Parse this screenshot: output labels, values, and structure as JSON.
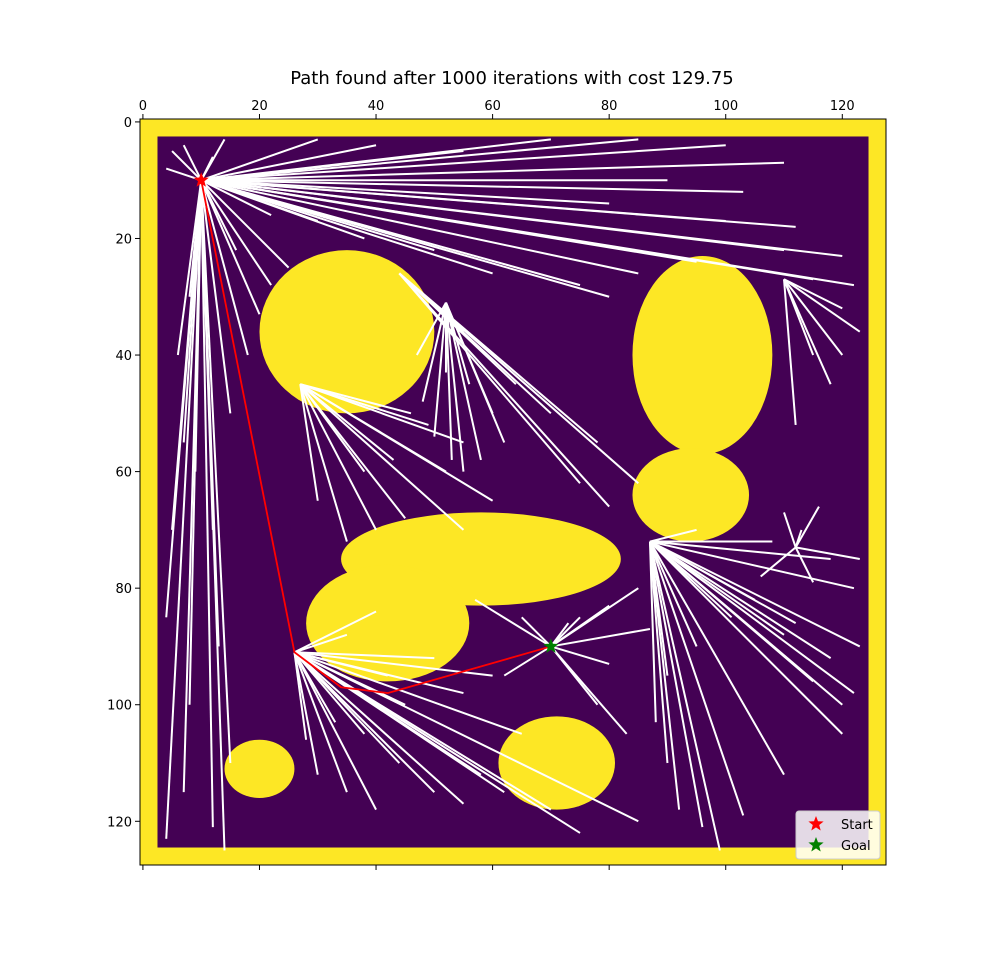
{
  "chart_data": {
    "type": "scatter",
    "title": "Path found after 1000 iterations with cost 129.75",
    "xlabel": "",
    "ylabel": "",
    "x_ticks": [
      "0",
      "20",
      "40",
      "60",
      "80",
      "100",
      "120"
    ],
    "y_ticks": [
      "0",
      "20",
      "40",
      "60",
      "80",
      "100",
      "120"
    ],
    "xlim": [
      -0.5,
      127.5
    ],
    "ylim": [
      127.5,
      -0.5
    ],
    "x_axis_position": "top",
    "grid": false,
    "legend_placement": "lower-right",
    "colors": {
      "free": "#440154",
      "obstacle": "#fde725",
      "tree": "#ffffff",
      "path": "#ff0000",
      "start_marker": "#ff0000",
      "goal_marker": "#008000"
    },
    "legend": [
      {
        "name": "Start",
        "color": "#ff0000",
        "marker": "star"
      },
      {
        "name": "Goal",
        "color": "#008000",
        "marker": "star"
      }
    ],
    "start": [
      10,
      10
    ],
    "goal": [
      70,
      90
    ],
    "path": [
      [
        10,
        10
      ],
      [
        26,
        91
      ],
      [
        34,
        97
      ],
      [
        42,
        98
      ],
      [
        70,
        90
      ]
    ],
    "obstacles": {
      "border_rows": [
        0,
        1,
        2,
        125,
        126,
        127
      ],
      "border_cols": [
        0,
        1,
        2,
        125,
        126,
        127
      ],
      "ellipses": [
        {
          "cx": 35,
          "cy": 36,
          "rx": 15,
          "ry": 14
        },
        {
          "cx": 96,
          "cy": 40,
          "rx": 12,
          "ry": 17
        },
        {
          "cx": 94,
          "cy": 64,
          "rx": 10,
          "ry": 8
        },
        {
          "cx": 58,
          "cy": 75,
          "rx": 24,
          "ry": 8
        },
        {
          "cx": 42,
          "cy": 86,
          "rx": 14,
          "ry": 10
        },
        {
          "cx": 71,
          "cy": 110,
          "rx": 10,
          "ry": 8
        },
        {
          "cx": 20,
          "cy": 111,
          "rx": 6,
          "ry": 5
        }
      ]
    },
    "tree_hubs": [
      {
        "x": 10,
        "y": 10,
        "fan": [
          [
            5,
            5
          ],
          [
            4,
            8
          ],
          [
            7,
            4
          ],
          [
            12,
            6
          ],
          [
            14,
            3
          ],
          [
            30,
            3
          ],
          [
            40,
            4
          ],
          [
            55,
            5
          ],
          [
            70,
            3
          ],
          [
            85,
            3
          ],
          [
            100,
            4
          ],
          [
            110,
            7
          ],
          [
            103,
            12
          ],
          [
            90,
            10
          ],
          [
            80,
            14
          ],
          [
            100,
            17
          ],
          [
            112,
            18
          ],
          [
            110,
            22
          ],
          [
            120,
            23
          ],
          [
            115,
            27
          ],
          [
            122,
            28
          ],
          [
            95,
            24
          ],
          [
            85,
            26
          ],
          [
            75,
            28
          ],
          [
            80,
            30
          ],
          [
            60,
            26
          ],
          [
            50,
            22
          ],
          [
            38,
            20
          ],
          [
            30,
            17
          ],
          [
            22,
            16
          ],
          [
            25,
            25
          ],
          [
            22,
            28
          ],
          [
            16,
            22
          ],
          [
            8,
            30
          ],
          [
            6,
            40
          ],
          [
            7,
            55
          ],
          [
            5,
            70
          ],
          [
            4,
            85
          ],
          [
            8,
            100
          ],
          [
            7,
            115
          ],
          [
            12,
            121
          ],
          [
            14,
            125
          ],
          [
            15,
            110
          ],
          [
            13,
            90
          ],
          [
            12,
            70
          ],
          [
            15,
            50
          ],
          [
            18,
            40
          ],
          [
            20,
            33
          ],
          [
            4,
            123
          ],
          [
            9,
            60
          ]
        ]
      },
      {
        "x": 27,
        "y": 45,
        "fan": [
          [
            49,
            52
          ],
          [
            55,
            55
          ],
          [
            52,
            60
          ],
          [
            60,
            65
          ],
          [
            55,
            70
          ],
          [
            45,
            68
          ],
          [
            40,
            70
          ],
          [
            35,
            72
          ],
          [
            30,
            65
          ],
          [
            38,
            60
          ],
          [
            43,
            58
          ],
          [
            46,
            50
          ]
        ]
      },
      {
        "x": 44,
        "y": 26,
        "fan": [
          [
            55,
            36
          ],
          [
            60,
            40
          ],
          [
            64,
            45
          ],
          [
            70,
            50
          ],
          [
            78,
            55
          ],
          [
            85,
            62
          ],
          [
            80,
            66
          ],
          [
            75,
            62
          ]
        ]
      },
      {
        "x": 52,
        "y": 31,
        "fan": [
          [
            60,
            50
          ],
          [
            62,
            55
          ],
          [
            58,
            58
          ],
          [
            55,
            60
          ],
          [
            53,
            58
          ],
          [
            50,
            54
          ],
          [
            48,
            48
          ],
          [
            47,
            40
          ],
          [
            52,
            43
          ],
          [
            56,
            45
          ]
        ]
      },
      {
        "x": 110,
        "y": 27,
        "fan": [
          [
            120,
            32
          ],
          [
            123,
            36
          ],
          [
            115,
            40
          ],
          [
            118,
            45
          ],
          [
            112,
            52
          ],
          [
            120,
            40
          ]
        ]
      },
      {
        "x": 87,
        "y": 72,
        "fan": [
          [
            95,
            70
          ],
          [
            108,
            72
          ],
          [
            118,
            75
          ],
          [
            122,
            80
          ],
          [
            112,
            86
          ],
          [
            118,
            92
          ],
          [
            122,
            98
          ],
          [
            120,
            105
          ],
          [
            110,
            112
          ],
          [
            103,
            119
          ],
          [
            99,
            125
          ],
          [
            96,
            121
          ],
          [
            92,
            118
          ],
          [
            90,
            110
          ],
          [
            88,
            103
          ],
          [
            90,
            95
          ],
          [
            95,
            90
          ],
          [
            101,
            85
          ],
          [
            105,
            82
          ],
          [
            110,
            88
          ],
          [
            115,
            96
          ],
          [
            123,
            90
          ],
          [
            120,
            100
          ]
        ]
      },
      {
        "x": 112,
        "y": 73,
        "fan": [
          [
            110,
            67
          ],
          [
            113,
            70
          ],
          [
            115,
            79
          ],
          [
            123,
            75
          ],
          [
            106,
            78
          ],
          [
            116,
            66
          ]
        ]
      },
      {
        "x": 26,
        "y": 91,
        "fan": [
          [
            35,
            88
          ],
          [
            40,
            84
          ],
          [
            50,
            92
          ],
          [
            55,
            98
          ],
          [
            45,
            100
          ],
          [
            38,
            105
          ],
          [
            44,
            110
          ],
          [
            50,
            115
          ],
          [
            40,
            118
          ],
          [
            35,
            115
          ],
          [
            30,
            112
          ],
          [
            28,
            106
          ],
          [
            33,
            103
          ],
          [
            42,
            95
          ],
          [
            60,
            95
          ],
          [
            65,
            105
          ],
          [
            58,
            112
          ],
          [
            62,
            115
          ],
          [
            70,
            118
          ],
          [
            85,
            120
          ],
          [
            75,
            122
          ],
          [
            55,
            117
          ]
        ]
      },
      {
        "x": 70,
        "y": 90,
        "fan": [
          [
            75,
            85
          ],
          [
            80,
            83
          ],
          [
            85,
            80
          ],
          [
            87,
            87
          ],
          [
            80,
            93
          ],
          [
            78,
            100
          ],
          [
            83,
            105
          ],
          [
            73,
            86
          ],
          [
            65,
            85
          ],
          [
            62,
            95
          ],
          [
            57,
            82
          ]
        ]
      }
    ]
  }
}
